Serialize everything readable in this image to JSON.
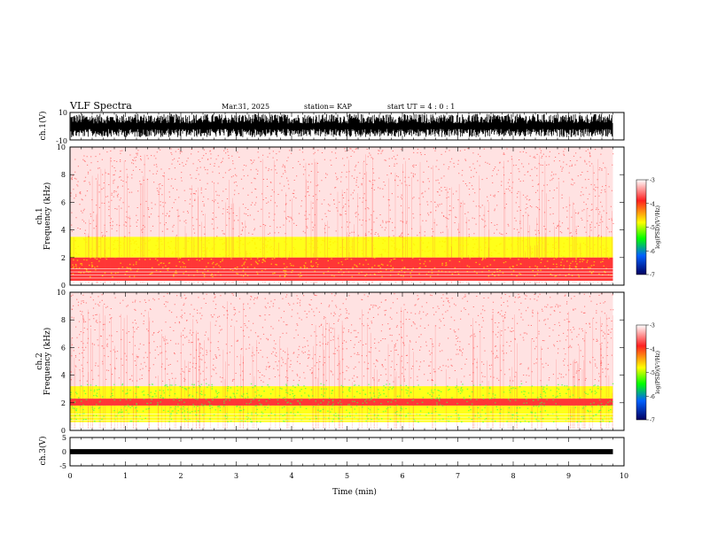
{
  "header": {
    "title": "VLF Spectra",
    "date": "Mar.31, 2025",
    "station": "station= KAP",
    "start_ut": "start  UT =   4 : 0  : 1"
  },
  "chart_data": [
    {
      "type": "line",
      "panel": "waveform-ch1",
      "ylabel": "ch.1(V)",
      "ylim": [
        -10,
        10
      ],
      "ytick_labels": [
        "10",
        "-10"
      ],
      "xlim": [
        0,
        10
      ],
      "description_values": "dense oscillating voltage trace spanning roughly -8 to 8 V",
      "series": [
        {
          "values": [
            [
              0,
              -6,
              8
            ],
            [
              1,
              -7,
              8
            ],
            [
              2,
              -7,
              8
            ],
            [
              3,
              -7,
              8
            ],
            [
              4,
              -7,
              8
            ],
            [
              5,
              -7,
              8
            ],
            [
              6,
              -7,
              8
            ],
            [
              7,
              -7,
              8
            ],
            [
              8,
              -7,
              8
            ],
            [
              9,
              -7,
              8
            ],
            [
              9.8,
              -7,
              8
            ]
          ]
        }
      ]
    },
    {
      "type": "heatmap",
      "panel": "spectrogram-ch1",
      "ylabel": "ch.1\nFrequency (kHz)",
      "ylim": [
        0,
        10
      ],
      "yticks": [
        0,
        2,
        4,
        6,
        8,
        10
      ],
      "xlim": [
        0,
        10
      ],
      "data_end_min": 9.8,
      "colorbar": {
        "label": "log(PSD)(V²/Hz)",
        "range": [
          -7,
          -3
        ],
        "ticks": [
          -3,
          -4,
          -5,
          -6,
          -7
        ],
        "colors": [
          "#ffffff",
          "#ff2020",
          "#ffff00",
          "#00ff00",
          "#0060ff",
          "#000060"
        ]
      },
      "bands": [
        {
          "f_lo": 2.0,
          "f_hi": 3.5,
          "level": -4.2
        },
        {
          "f_lo": 1.0,
          "f_hi": 2.0,
          "level": -4.1
        },
        {
          "f_lo": 0.3,
          "f_hi": 1.0,
          "level": -3.6
        },
        {
          "f_lo": 3.5,
          "f_hi": 10.0,
          "level": -3.3
        }
      ]
    },
    {
      "type": "heatmap",
      "panel": "spectrogram-ch2",
      "ylabel": "ch.2\nFrequency (kHz)",
      "ylim": [
        0,
        10
      ],
      "yticks": [
        0,
        2,
        4,
        6,
        8,
        10
      ],
      "xlim": [
        0,
        10
      ],
      "data_end_min": 9.8,
      "colorbar": {
        "label": "log(PSD)(V²/Hz)",
        "range": [
          -7,
          -3
        ],
        "ticks": [
          -3,
          -4,
          -5,
          -6,
          -7
        ],
        "colors": [
          "#ffffff",
          "#ff2020",
          "#ffff00",
          "#00ff00",
          "#0060ff",
          "#000060"
        ]
      },
      "bands": [
        {
          "f_lo": 2.3,
          "f_hi": 3.2,
          "level": -4.5
        },
        {
          "f_lo": 0.6,
          "f_hi": 1.8,
          "level": -4.6
        },
        {
          "f_lo": 1.8,
          "f_hi": 2.3,
          "level": -3.8
        },
        {
          "f_lo": 3.2,
          "f_hi": 10.0,
          "level": -3.3
        }
      ]
    },
    {
      "type": "line",
      "panel": "waveform-ch3",
      "ylabel": "ch.3(V)",
      "ylim": [
        -5,
        5
      ],
      "yticks": [
        5,
        0,
        -5
      ],
      "xlim": [
        0,
        10
      ],
      "xlabel": "Time (min)",
      "xticks": [
        0,
        1,
        2,
        3,
        4,
        5,
        6,
        7,
        8,
        9,
        10
      ],
      "series": [
        {
          "values": [
            [
              0,
              -1,
              1
            ],
            [
              9.8,
              -1,
              1
            ]
          ]
        }
      ]
    }
  ]
}
